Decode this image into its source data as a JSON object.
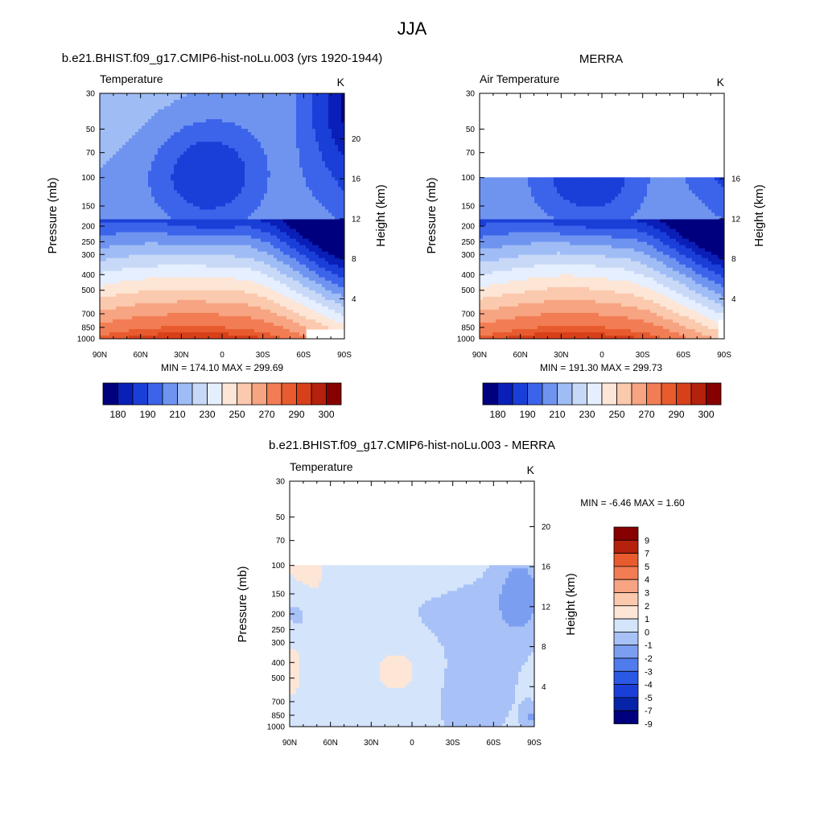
{
  "figure_title": "JJA",
  "colors": {
    "abs_scale": [
      "#00007f",
      "#0a1fb8",
      "#1a3fd8",
      "#3c64ea",
      "#6f94f0",
      "#9fbcf5",
      "#c8d9f8",
      "#e6efff",
      "#fde6d6",
      "#fbc9ad",
      "#f7a482",
      "#f27d54",
      "#e85b2f",
      "#d8401a",
      "#b4210c",
      "#870000"
    ],
    "diff_scale": [
      "#00007f",
      "#0624a8",
      "#1a3fd8",
      "#2c58e6",
      "#4f7bec",
      "#7c9ef1",
      "#a8c1f6",
      "#d4e4fb",
      "#fde6d6",
      "#fbc9ad",
      "#f7a482",
      "#f27d54",
      "#e85b2f",
      "#b4210c",
      "#870000"
    ]
  },
  "chart_data": [
    {
      "type": "heatmap",
      "id": "model",
      "title": "b.e21.BHIST.f09_g17.CMIP6-hist-noLu.003 (yrs 1920-1944)",
      "left_label": "Temperature",
      "units": "K",
      "ylabel": "Pressure (mb)",
      "ylabel_right": "Height (km)",
      "x_ticks": [
        "90N",
        "60N",
        "30N",
        "0",
        "30S",
        "60S",
        "90S"
      ],
      "y_ticks": [
        30,
        50,
        70,
        100,
        150,
        200,
        250,
        300,
        400,
        500,
        700,
        850,
        1000
      ],
      "height_ticks": [
        4,
        8,
        12,
        16,
        20
      ],
      "ylim": [
        1000,
        30
      ],
      "yscale": "log",
      "data_top_mb": 30,
      "stats": "MIN = 174.10  MAX = 299.69",
      "min": 174.1,
      "max": 299.69,
      "colorbar_labels": [
        "180",
        "190",
        "210",
        "230",
        "250",
        "270",
        "290",
        "300"
      ],
      "field": "model"
    },
    {
      "type": "heatmap",
      "id": "obs",
      "title": "MERRA",
      "left_label": "Air Temperature",
      "units": "K",
      "ylabel": "Pressure (mb)",
      "ylabel_right": "Height (km)",
      "x_ticks": [
        "90N",
        "60N",
        "30N",
        "0",
        "30S",
        "60S",
        "90S"
      ],
      "y_ticks": [
        30,
        50,
        70,
        100,
        150,
        200,
        250,
        300,
        400,
        500,
        700,
        850,
        1000
      ],
      "height_ticks": [
        4,
        8,
        12,
        16
      ],
      "ylim": [
        1000,
        30
      ],
      "yscale": "log",
      "data_top_mb": 100,
      "stats": "MIN = 191.30  MAX = 299.73",
      "min": 191.3,
      "max": 299.73,
      "colorbar_labels": [
        "180",
        "190",
        "210",
        "230",
        "250",
        "270",
        "290",
        "300"
      ],
      "field": "obs"
    },
    {
      "type": "heatmap",
      "id": "diff",
      "title": "b.e21.BHIST.f09_g17.CMIP6-hist-noLu.003 - MERRA",
      "left_label": "Temperature",
      "units": "K",
      "ylabel": "Pressure (mb)",
      "ylabel_right": "Height (km)",
      "x_ticks": [
        "90N",
        "60N",
        "30N",
        "0",
        "30S",
        "60S",
        "90S"
      ],
      "y_ticks": [
        30,
        50,
        70,
        100,
        150,
        200,
        250,
        300,
        400,
        500,
        700,
        850,
        1000
      ],
      "height_ticks": [
        4,
        8,
        12,
        16,
        20
      ],
      "ylim": [
        1000,
        30
      ],
      "yscale": "log",
      "data_top_mb": 100,
      "stats": "MIN =  -6.46  MAX =   1.60",
      "min": -6.46,
      "max": 1.6,
      "colorbar_labels": [
        "9",
        "7",
        "5",
        "4",
        "3",
        "2",
        "1",
        "0",
        "-1",
        "-2",
        "-3",
        "-4",
        "-5",
        "-7",
        "-9"
      ],
      "field": "diff"
    }
  ]
}
